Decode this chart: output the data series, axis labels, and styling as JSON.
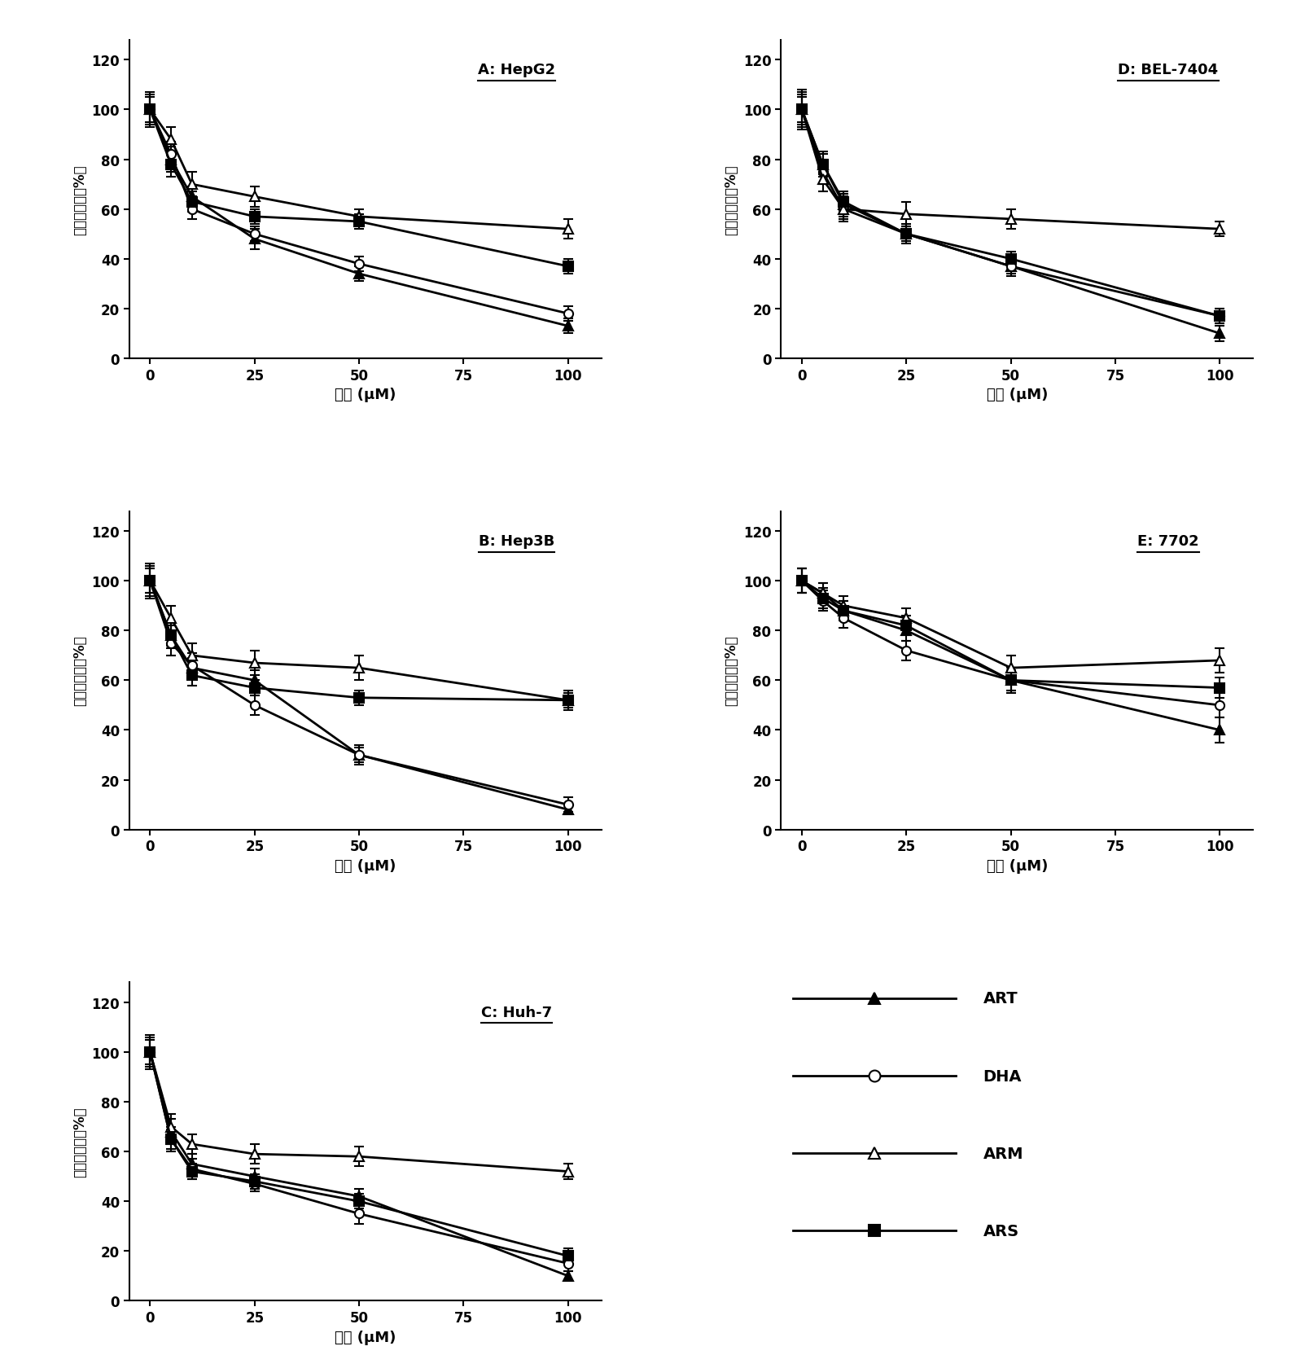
{
  "x": [
    0,
    5,
    10,
    25,
    50,
    100
  ],
  "panels": {
    "A": {
      "title": "A: HepG2",
      "ART": {
        "y": [
          100,
          80,
          65,
          48,
          34,
          13
        ],
        "yerr": [
          5,
          5,
          4,
          4,
          3,
          3
        ]
      },
      "DHA": {
        "y": [
          100,
          82,
          60,
          50,
          38,
          18
        ],
        "yerr": [
          6,
          5,
          4,
          3,
          3,
          3
        ]
      },
      "ARM": {
        "y": [
          100,
          88,
          70,
          65,
          57,
          52
        ],
        "yerr": [
          7,
          5,
          5,
          4,
          3,
          4
        ]
      },
      "ARS": {
        "y": [
          100,
          78,
          63,
          57,
          55,
          37
        ],
        "yerr": [
          5,
          5,
          4,
          3,
          3,
          3
        ]
      }
    },
    "B": {
      "title": "B: Hep3B",
      "ART": {
        "y": [
          100,
          78,
          65,
          60,
          30,
          8
        ],
        "yerr": [
          5,
          5,
          4,
          4,
          3,
          2
        ]
      },
      "DHA": {
        "y": [
          100,
          75,
          66,
          50,
          30,
          10
        ],
        "yerr": [
          6,
          5,
          5,
          4,
          4,
          3
        ]
      },
      "ARM": {
        "y": [
          100,
          85,
          70,
          67,
          65,
          52
        ],
        "yerr": [
          7,
          5,
          5,
          5,
          5,
          4
        ]
      },
      "ARS": {
        "y": [
          100,
          78,
          62,
          57,
          53,
          52
        ],
        "yerr": [
          5,
          4,
          4,
          3,
          3,
          3
        ]
      }
    },
    "C": {
      "title": "C: Huh-7",
      "ART": {
        "y": [
          100,
          68,
          55,
          50,
          42,
          10
        ],
        "yerr": [
          5,
          5,
          4,
          3,
          3,
          2
        ]
      },
      "DHA": {
        "y": [
          100,
          65,
          53,
          47,
          35,
          15
        ],
        "yerr": [
          6,
          5,
          4,
          3,
          4,
          3
        ]
      },
      "ARM": {
        "y": [
          100,
          70,
          63,
          59,
          58,
          52
        ],
        "yerr": [
          7,
          5,
          4,
          4,
          4,
          3
        ]
      },
      "ARS": {
        "y": [
          100,
          65,
          52,
          48,
          40,
          18
        ],
        "yerr": [
          5,
          4,
          3,
          3,
          3,
          3
        ]
      }
    },
    "D": {
      "title": "D: BEL-7404",
      "ART": {
        "y": [
          100,
          78,
          62,
          50,
          37,
          10
        ],
        "yerr": [
          8,
          5,
          5,
          4,
          4,
          3
        ]
      },
      "DHA": {
        "y": [
          100,
          75,
          60,
          50,
          37,
          17
        ],
        "yerr": [
          7,
          5,
          4,
          3,
          3,
          3
        ]
      },
      "ARM": {
        "y": [
          100,
          72,
          60,
          58,
          56,
          52
        ],
        "yerr": [
          6,
          5,
          5,
          5,
          4,
          3
        ]
      },
      "ARS": {
        "y": [
          100,
          78,
          63,
          50,
          40,
          17
        ],
        "yerr": [
          5,
          4,
          3,
          3,
          3,
          3
        ]
      }
    },
    "E": {
      "title": "E: 7702",
      "ART": {
        "y": [
          100,
          95,
          88,
          80,
          60,
          40
        ],
        "yerr": [
          5,
          4,
          4,
          4,
          5,
          5
        ]
      },
      "DHA": {
        "y": [
          100,
          92,
          85,
          72,
          60,
          50
        ],
        "yerr": [
          5,
          4,
          4,
          4,
          4,
          5
        ]
      },
      "ARM": {
        "y": [
          100,
          95,
          90,
          85,
          65,
          68
        ],
        "yerr": [
          5,
          4,
          4,
          4,
          5,
          5
        ]
      },
      "ARS": {
        "y": [
          100,
          93,
          88,
          82,
          60,
          57
        ],
        "yerr": [
          5,
          4,
          4,
          4,
          4,
          4
        ]
      }
    }
  },
  "series_order": [
    "ART",
    "DHA",
    "ARM",
    "ARS"
  ],
  "series": {
    "ART": {
      "marker": "^",
      "fillstyle": "full",
      "label": "ART"
    },
    "DHA": {
      "marker": "o",
      "fillstyle": "none",
      "label": "DHA"
    },
    "ARM": {
      "marker": "^",
      "fillstyle": "none",
      "label": "ARM"
    },
    "ARS": {
      "marker": "s",
      "fillstyle": "full",
      "label": "ARS"
    }
  },
  "xlabel": "浓度 (μM)",
  "ylabel": "细胞存活率（%）",
  "ylim": [
    0,
    128
  ],
  "yticks": [
    0,
    20,
    40,
    60,
    80,
    100,
    120
  ],
  "xticks": [
    0,
    25,
    50,
    75,
    100
  ],
  "panel_layout": [
    [
      "A",
      0,
      0
    ],
    [
      "D",
      0,
      1
    ],
    [
      "B",
      1,
      0
    ],
    [
      "E",
      1,
      1
    ],
    [
      "C",
      2,
      0
    ]
  ],
  "legend_entries": [
    {
      "label": "ART",
      "marker": "^",
      "mfc": "black"
    },
    {
      "label": "DHA",
      "marker": "o",
      "mfc": "white"
    },
    {
      "label": "ARM",
      "marker": "^",
      "mfc": "white"
    },
    {
      "label": "ARS",
      "marker": "s",
      "mfc": "black"
    }
  ]
}
